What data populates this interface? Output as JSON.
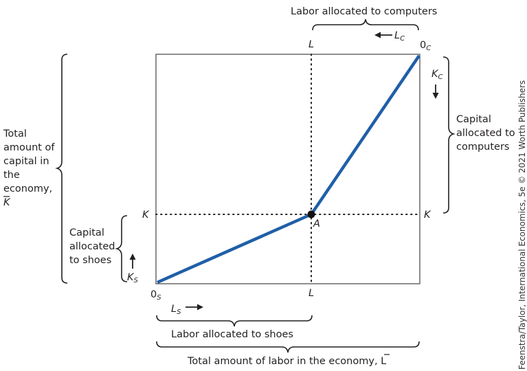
{
  "labels": {
    "top_bracket": "Labor allocated to computers",
    "bottom_inner_bracket": "Labor allocated to shoes",
    "bottom_outer_bracket": "Total amount of labor in the economy, L",
    "left_total": [
      "Total",
      "amount of",
      "capital in",
      "the",
      "economy,",
      "K"
    ],
    "left_shoes": [
      "Capital",
      "allocated",
      "to shoes"
    ],
    "right_computers": [
      "Capital",
      "allocated to",
      "computers"
    ],
    "L_top": "L",
    "L_bottom": "L",
    "K_left": "K",
    "K_right": "K",
    "point_A": "A",
    "origin_shoes": "0",
    "origin_shoes_sub": "S",
    "origin_computers": "0",
    "origin_computers_sub": "C",
    "Lc": "L",
    "Lc_sub": "C",
    "Kc": "K",
    "Kc_sub": "C",
    "Ls": "L",
    "Ls_sub": "S",
    "Ks": "K",
    "Ks_sub": "S"
  },
  "credit": "Feenstra/Taylor, International Economics, 5e © 2021 Worth Publishers",
  "colors": {
    "line": "#1f5fa8",
    "box": "#444444",
    "dot": "#111111"
  }
}
